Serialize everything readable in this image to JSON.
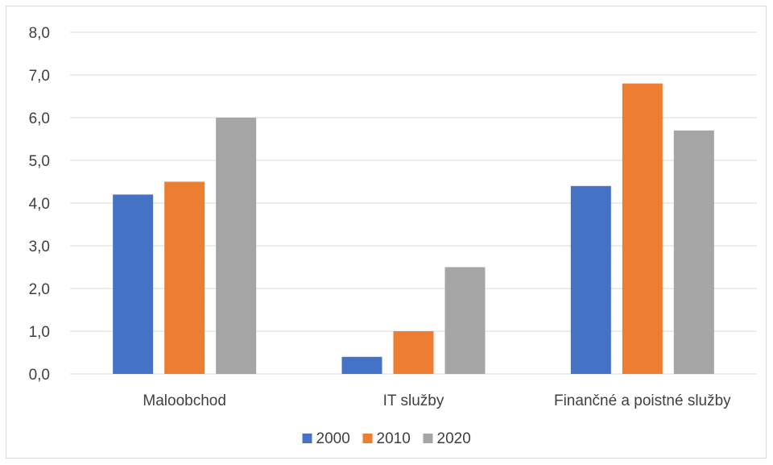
{
  "chart_data": {
    "type": "bar",
    "categories": [
      "Maloobchod",
      "IT služby",
      "Finančné a poistné služby"
    ],
    "series": [
      {
        "name": "2000",
        "color": "#4472C4",
        "values": [
          4.2,
          0.4,
          4.4
        ]
      },
      {
        "name": "2010",
        "color": "#ED7D31",
        "values": [
          4.5,
          1.0,
          6.8
        ]
      },
      {
        "name": "2020",
        "color": "#A5A5A5",
        "values": [
          6.0,
          2.5,
          5.7
        ]
      }
    ],
    "ylim": [
      0,
      8
    ],
    "yticks": [
      "0,0",
      "1,0",
      "2,0",
      "3,0",
      "4,0",
      "5,0",
      "6,0",
      "7,0",
      "8,0"
    ],
    "grid": true,
    "legend_position": "bottom",
    "gridline_color": "#d9d9d9"
  }
}
